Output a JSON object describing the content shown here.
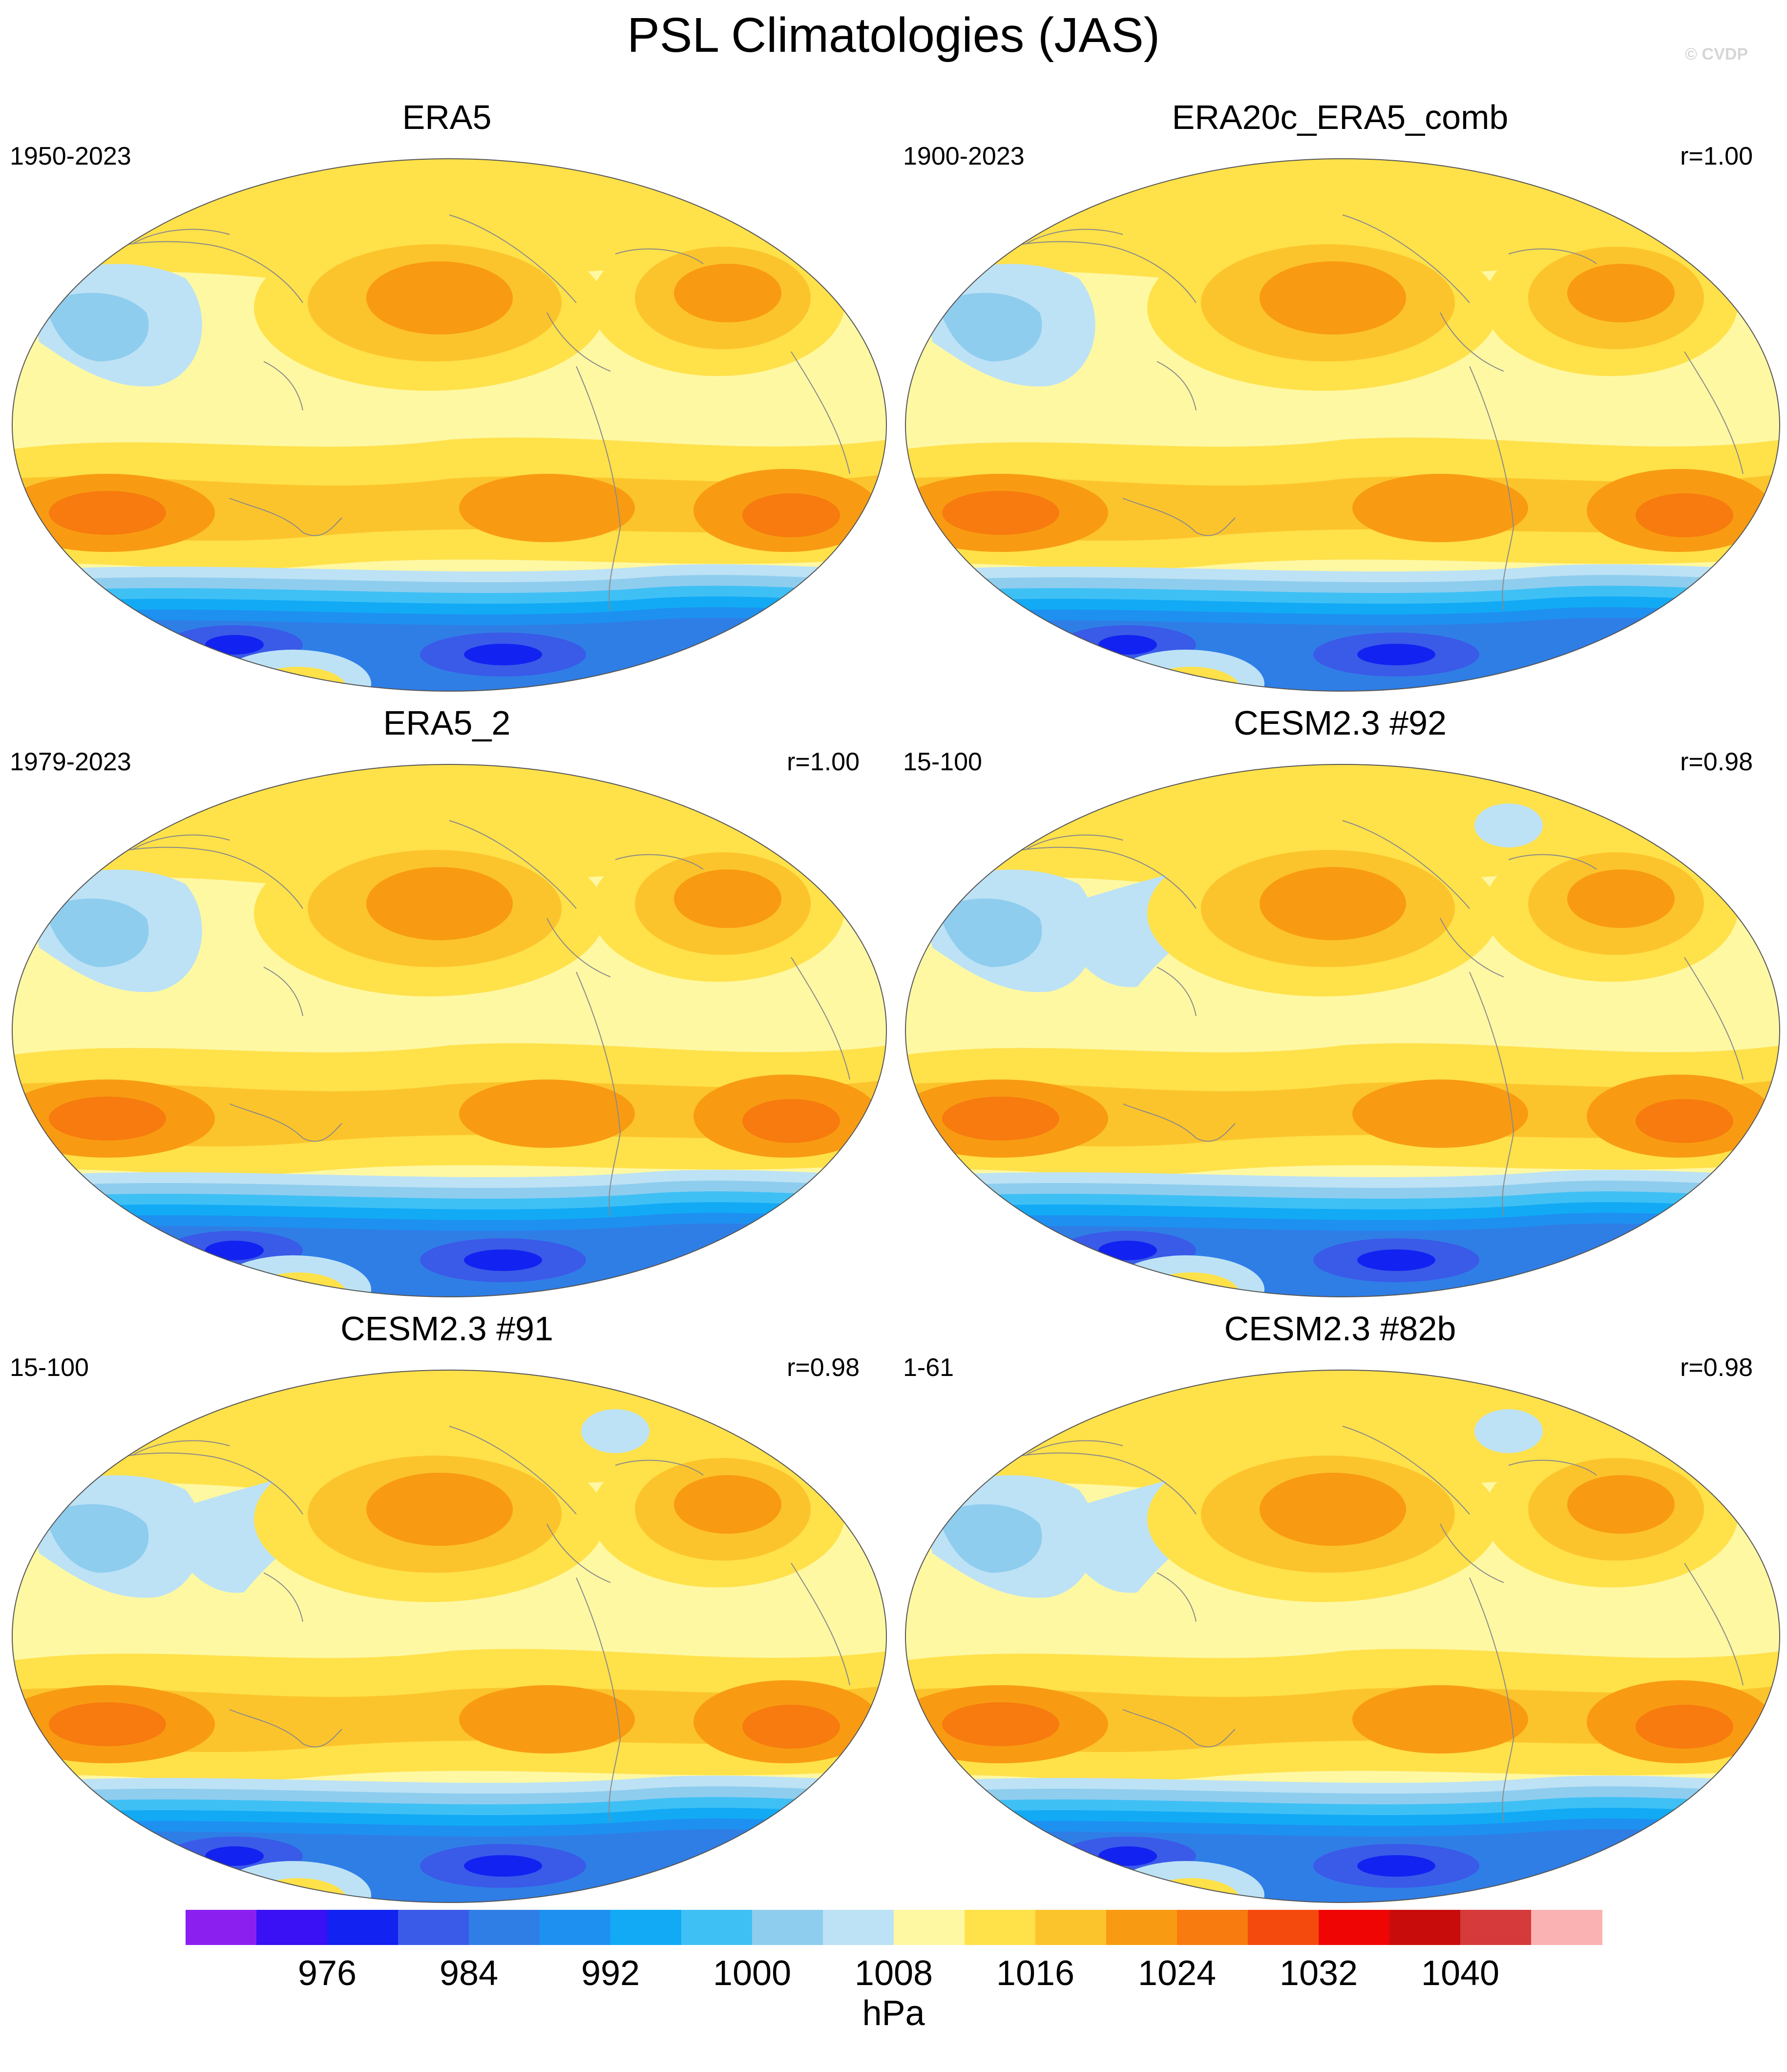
{
  "title": "PSL Climatologies (JAS)",
  "watermark": "© CVDP",
  "panels": [
    {
      "title": "ERA5",
      "left": "1950-2023",
      "right": "",
      "variant": 0
    },
    {
      "title": "ERA20c_ERA5_comb",
      "left": "1900-2023",
      "right": "r=1.00",
      "variant": 1
    },
    {
      "title": "ERA5_2",
      "left": "1979-2023",
      "right": "r=1.00",
      "variant": 0
    },
    {
      "title": "CESM2.3 #92",
      "left": "15-100",
      "right": "r=0.98",
      "variant": 2
    },
    {
      "title": "CESM2.3 #91",
      "left": "15-100",
      "right": "r=0.98",
      "variant": 2
    },
    {
      "title": "CESM2.3 #82b",
      "left": "1-61",
      "right": "r=0.98",
      "variant": 2
    }
  ],
  "colorbar": {
    "unit": "hPa",
    "colors": [
      "#8a1ff0",
      "#3a10f5",
      "#1222f0",
      "#3a5ae8",
      "#2f7ee6",
      "#1e90f0",
      "#12aaf5",
      "#3fc0f5",
      "#8fcdee",
      "#bde2f5",
      "#fff8a3",
      "#ffe14a",
      "#fcc42c",
      "#f89b12",
      "#f77b0e",
      "#f54a0e",
      "#f00505",
      "#c80c0c",
      "#d63a3a",
      "#fbb2b2"
    ],
    "tick_labels": [
      "976",
      "984",
      "992",
      "1000",
      "1008",
      "1016",
      "1024",
      "1032",
      "1040"
    ]
  }
}
